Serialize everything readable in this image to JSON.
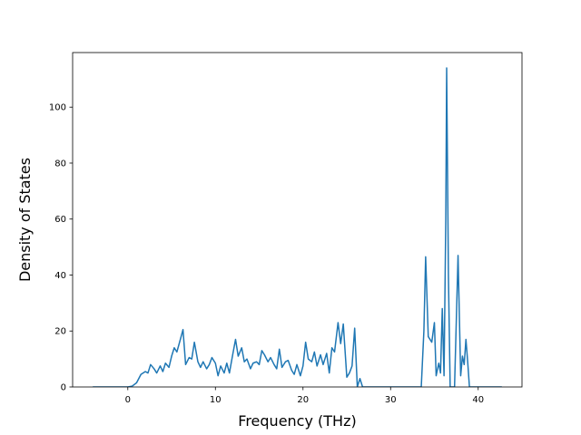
{
  "chart_data": {
    "type": "line",
    "xlabel": "Frequency (THz)",
    "ylabel": "Density of States",
    "color": "#1f77b4",
    "x": [
      -4,
      0,
      0.5,
      1,
      1.5,
      2,
      2.3,
      2.6,
      3,
      3.3,
      3.7,
      4,
      4.3,
      4.7,
      5,
      5.3,
      5.6,
      6,
      6.3,
      6.6,
      7,
      7.3,
      7.6,
      8,
      8.3,
      8.6,
      9,
      9.3,
      9.6,
      10,
      10.3,
      10.6,
      11,
      11.3,
      11.6,
      12,
      12.3,
      12.6,
      13,
      13.3,
      13.6,
      14,
      14.3,
      14.7,
      15,
      15.3,
      15.6,
      16,
      16.3,
      16.7,
      17,
      17.3,
      17.6,
      18,
      18.3,
      18.7,
      19,
      19.3,
      19.7,
      20,
      20.3,
      20.6,
      21,
      21.3,
      21.6,
      22,
      22.3,
      22.7,
      23,
      23.3,
      23.6,
      24,
      24.3,
      24.6,
      25,
      25.3,
      25.6,
      25.9,
      26.2,
      26.5,
      26.8,
      30,
      33.5,
      33.8,
      34,
      34.3,
      34.7,
      35,
      35.2,
      35.5,
      35.7,
      35.9,
      36.1,
      36.3,
      36.4,
      36.6,
      36.8,
      37.3,
      37.7,
      38,
      38.2,
      38.4,
      38.6,
      38.8,
      39,
      42.7
    ],
    "values": [
      0,
      0,
      0.3,
      1.5,
      4.5,
      5.5,
      5,
      8,
      6.5,
      5,
      7.5,
      5.5,
      8.5,
      7,
      11,
      14,
      12.5,
      17,
      20.5,
      8,
      10.5,
      10,
      16,
      9,
      7,
      9,
      6.5,
      8,
      10.5,
      8.5,
      4,
      7.5,
      5,
      8.5,
      5,
      12,
      17,
      11,
      14,
      9,
      10,
      6.5,
      8.5,
      9,
      8,
      13,
      11.5,
      9,
      10.5,
      8,
      6.5,
      13.5,
      7,
      9,
      9.5,
      6,
      4.5,
      8,
      4,
      7.5,
      16,
      10,
      9,
      12.5,
      7.5,
      11.5,
      8,
      12,
      5,
      14,
      12.5,
      23,
      15.5,
      22.5,
      3.5,
      5,
      7.5,
      21,
      0,
      3,
      0,
      0,
      0,
      20,
      46.5,
      18,
      16,
      23,
      4,
      8.5,
      5,
      28,
      4,
      60,
      114,
      40,
      0,
      0,
      47,
      4,
      11,
      8,
      17,
      9,
      0,
      0
    ],
    "xlim": [
      -6.3,
      45
    ],
    "xticks": [
      0,
      10,
      20,
      30,
      40
    ],
    "ylim": [
      0,
      119.5
    ],
    "yticks": [
      0,
      20,
      40,
      60,
      80,
      100
    ],
    "grid": false
  }
}
